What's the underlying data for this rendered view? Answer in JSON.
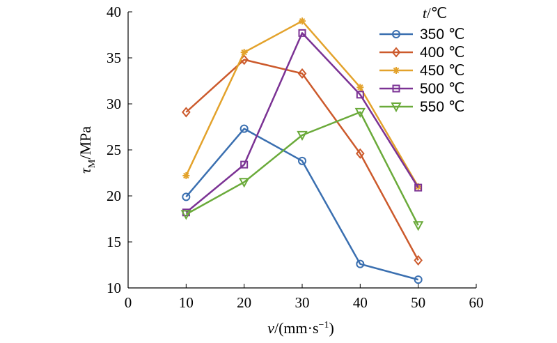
{
  "chart_data": {
    "type": "line",
    "x_label_var": "v",
    "x_label_unit": "/(mm·s",
    "x_label_exp": "−1",
    "x_label_close": ")",
    "y_label_var": "τ",
    "y_label_sub": "M",
    "y_label_unit": "/MPa",
    "legend_title_var": "t",
    "legend_title_unit": "/℃",
    "xlim": [
      0,
      60
    ],
    "ylim": [
      10,
      40
    ],
    "x_ticks": [
      0,
      10,
      20,
      30,
      40,
      50,
      60
    ],
    "y_ticks": [
      10,
      15,
      20,
      25,
      30,
      35,
      40
    ],
    "x": [
      10,
      20,
      30,
      40,
      50
    ],
    "grid": false,
    "legend_position": "top-right",
    "series": [
      {
        "name": "350 ℃",
        "color": "#3a6fb0",
        "marker": "circle",
        "values": [
          19.9,
          27.3,
          23.8,
          12.6,
          10.9
        ]
      },
      {
        "name": "400 ℃",
        "color": "#cc5a2c",
        "marker": "diamond",
        "values": [
          29.1,
          34.8,
          33.3,
          24.6,
          13.0
        ]
      },
      {
        "name": "450 ℃",
        "color": "#e3a22b",
        "marker": "asterisk",
        "values": [
          22.2,
          35.6,
          39.0,
          31.8,
          21.0
        ]
      },
      {
        "name": "500 ℃",
        "color": "#7b3294",
        "marker": "square",
        "values": [
          18.2,
          23.4,
          37.7,
          31.0,
          20.9
        ]
      },
      {
        "name": "550 ℃",
        "color": "#6aaa3a",
        "marker": "triangle",
        "values": [
          18.0,
          21.5,
          26.6,
          29.1,
          16.8
        ]
      }
    ]
  }
}
